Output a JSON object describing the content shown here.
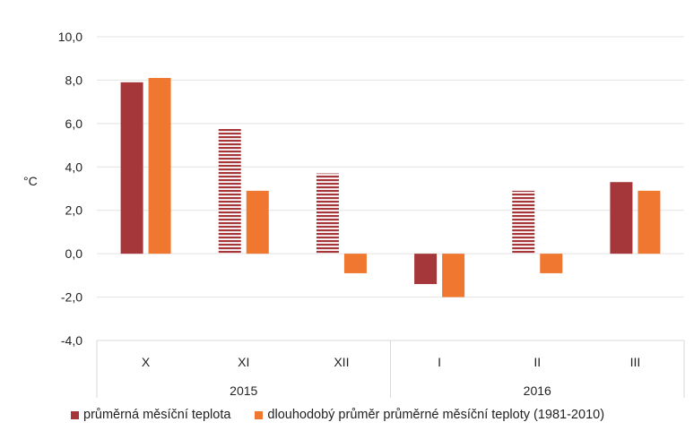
{
  "chart_data": {
    "type": "bar",
    "ylabel": "°C",
    "ylim": [
      -4,
      10
    ],
    "yticks": [
      "10,0",
      "8,0",
      "6,0",
      "4,0",
      "2,0",
      "0,0",
      "-2,0",
      "-4,0"
    ],
    "ytick_values": [
      10,
      8,
      6,
      4,
      2,
      0,
      -2,
      -4
    ],
    "grid": true,
    "categories": [
      "X",
      "XI",
      "XII",
      "I",
      "II",
      "III"
    ],
    "groups": [
      {
        "label": "2015",
        "categories": [
          "X",
          "XI",
          "XII"
        ]
      },
      {
        "label": "2016",
        "categories": [
          "I",
          "II",
          "III"
        ]
      }
    ],
    "series": [
      {
        "name": "průměrná měsíční teplota",
        "color": "#A5373A",
        "values": [
          7.9,
          5.8,
          3.7,
          -1.4,
          2.9,
          3.3
        ],
        "hatched": [
          false,
          true,
          true,
          false,
          true,
          false
        ]
      },
      {
        "name": "dlouhodobý průměr průměrné měsíční teploty (1981-2010)",
        "color": "#F07730",
        "values": [
          8.1,
          2.9,
          -0.9,
          -2.0,
          -0.9,
          2.9
        ],
        "hatched": [
          false,
          false,
          false,
          false,
          false,
          false
        ]
      }
    ],
    "legend_position": "bottom"
  }
}
